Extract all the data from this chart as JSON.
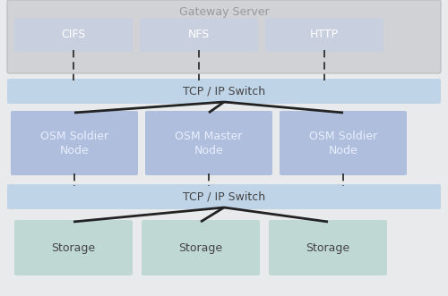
{
  "fig_width": 5.0,
  "fig_height": 3.31,
  "dpi": 100,
  "bg_color": "#e8eaec",
  "gateway_bg": "#d0d2d6",
  "gateway_label": "Gateway Server",
  "gateway_label_color": "#999999",
  "gateway_label_fontsize": 9,
  "cifs_label": "CIFS",
  "nfs_label": "NFS",
  "http_label": "HTTP",
  "protocol_box_color": "#c8d0e0",
  "protocol_text_color": "#ffffff",
  "protocol_fontsize": 9,
  "tcp_switch_label": "TCP / IP Switch",
  "tcp_switch_color": "#c0d4e8",
  "tcp_switch_text_color": "#444444",
  "tcp_switch_fontsize": 9,
  "osm_soldier_label": "OSM Soldier\nNode",
  "osm_master_label": "OSM Master\nNode",
  "osm_box_color": "#b0bedd",
  "osm_text_color": "#e8eeff",
  "osm_fontsize": 9,
  "storage_label": "Storage",
  "storage_box_color": "#c0d8d4",
  "storage_text_color": "#444444",
  "storage_fontsize": 9,
  "line_color": "#222222"
}
